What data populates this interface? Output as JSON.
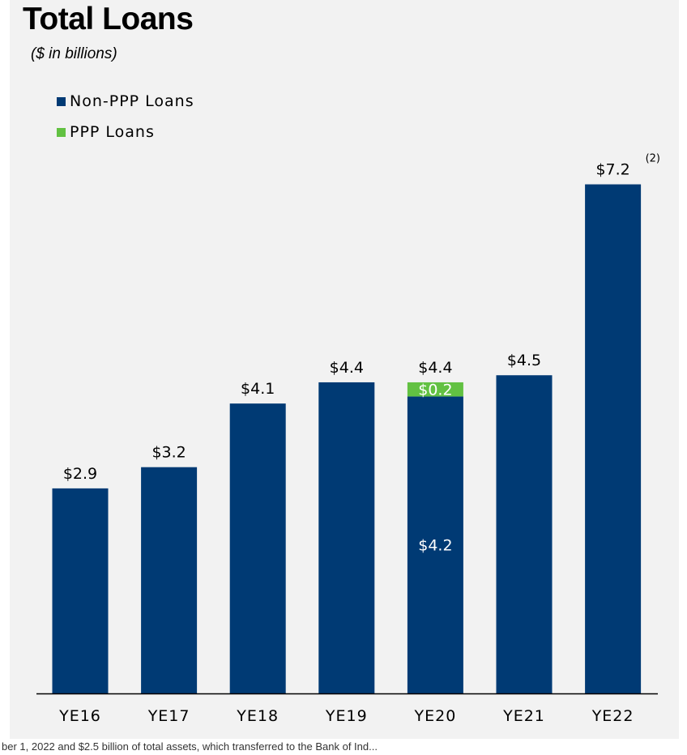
{
  "title": "Total Loans",
  "subtitle": "($ in billions)",
  "legend": [
    {
      "label": "Non-PPP Loans",
      "color": "#003a74"
    },
    {
      "label": "PPP Loans",
      "color": "#62c142"
    }
  ],
  "footnote": "ber 1, 2022 and $2.5 billion of total assets, which transferred to the Bank of Ind...",
  "chart_data": {
    "type": "bar",
    "stacked": true,
    "categories": [
      "YE16",
      "YE17",
      "YE18",
      "YE19",
      "YE20",
      "YE21",
      "YE22"
    ],
    "series": [
      {
        "name": "Non-PPP Loans",
        "color": "#003a74",
        "values": [
          2.9,
          3.2,
          4.1,
          4.4,
          4.2,
          4.5,
          7.2
        ]
      },
      {
        "name": "PPP Loans",
        "color": "#62c142",
        "values": [
          0,
          0,
          0,
          0,
          0.2,
          0,
          0
        ]
      }
    ],
    "total_labels": [
      "$2.9",
      "$3.2",
      "$4.1",
      "$4.4",
      "$4.4",
      "$4.5",
      "$7.2"
    ],
    "total_label_superscripts": [
      "",
      "",
      "",
      "",
      "",
      "",
      "(2)"
    ],
    "segment_labels": {
      "YE20": {
        "Non-PPP Loans": "$4.2",
        "PPP Loans": "$0.2"
      }
    },
    "ylim": [
      0,
      8.1
    ],
    "grid": false,
    "legend_position": "top-left"
  }
}
